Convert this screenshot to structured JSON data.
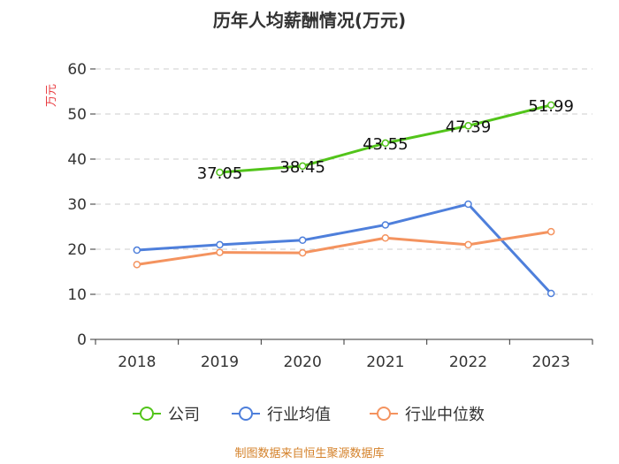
{
  "chart_data": {
    "type": "line",
    "title": "历年人均薪酬情况(万元)",
    "ylabel": "万元",
    "xlabel": "",
    "categories": [
      "2018",
      "2019",
      "2020",
      "2021",
      "2022",
      "2023"
    ],
    "ylim": [
      0,
      60
    ],
    "yticks": [
      0,
      10,
      20,
      30,
      40,
      50,
      60
    ],
    "grid": true,
    "legend_position": "bottom",
    "series": [
      {
        "name": "公司",
        "color": "#52c41a",
        "values": [
          null,
          37.05,
          38.45,
          43.55,
          47.39,
          51.99
        ],
        "labels": [
          "",
          "37.05",
          "38.45",
          "43.55",
          "47.39",
          "51.99"
        ]
      },
      {
        "name": "行业均值",
        "color": "#4e7fdb",
        "values": [
          19.8,
          21.0,
          22.0,
          25.4,
          30.0,
          10.2
        ]
      },
      {
        "name": "行业中位数",
        "color": "#f4935f",
        "values": [
          16.6,
          19.3,
          19.2,
          22.5,
          21.0,
          23.9
        ]
      }
    ],
    "source": "制图数据来自恒生聚源数据库"
  }
}
